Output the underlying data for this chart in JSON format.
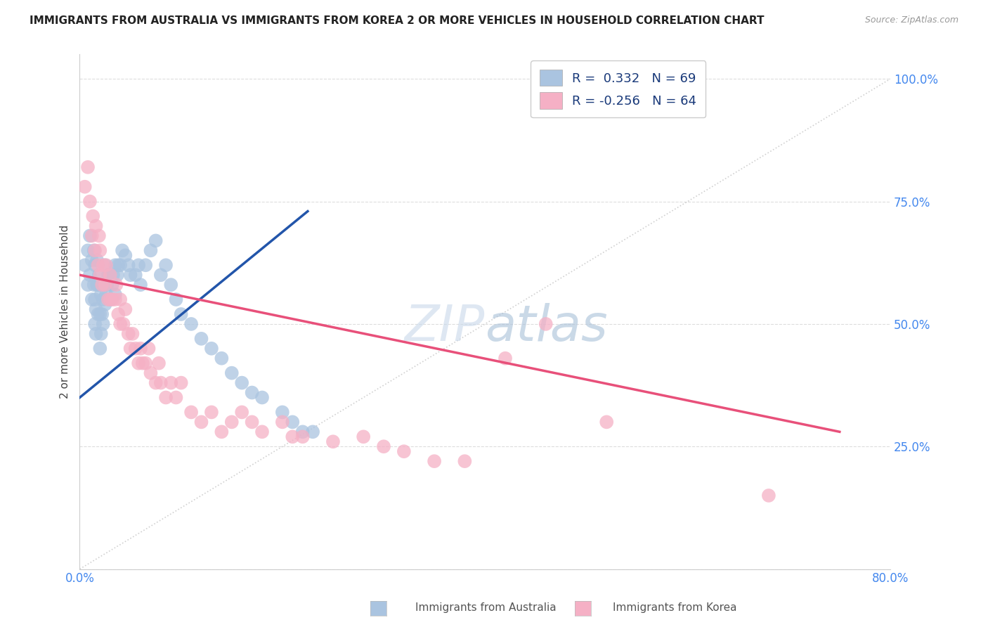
{
  "title": "IMMIGRANTS FROM AUSTRALIA VS IMMIGRANTS FROM KOREA 2 OR MORE VEHICLES IN HOUSEHOLD CORRELATION CHART",
  "source": "Source: ZipAtlas.com",
  "ylabel": "2 or more Vehicles in Household",
  "r_australia": 0.332,
  "n_australia": 69,
  "r_korea": -0.256,
  "n_korea": 64,
  "color_australia": "#aac4e0",
  "color_korea": "#f5b0c5",
  "line_color_australia": "#2255aa",
  "line_color_korea": "#e8507a",
  "diagonal_color": "#cccccc",
  "watermark_zip_color": "#c5d5e8",
  "watermark_atlas_color": "#aabdd8",
  "background_color": "#ffffff",
  "grid_color": "#dddddd",
  "title_color": "#222222",
  "axis_label_color": "#4488ee",
  "xlim": [
    0.0,
    0.8
  ],
  "ylim": [
    0.0,
    1.05
  ],
  "x_ticks": [
    0.0,
    0.1,
    0.2,
    0.3,
    0.4,
    0.5,
    0.6,
    0.7,
    0.8
  ],
  "y_ticks": [
    0.0,
    0.25,
    0.5,
    0.75,
    1.0
  ],
  "australia_line_x0": 0.0,
  "australia_line_y0": 0.35,
  "australia_line_x1": 0.225,
  "australia_line_y1": 0.73,
  "korea_line_x0": 0.0,
  "korea_line_y0": 0.6,
  "korea_line_x1": 0.75,
  "korea_line_y1": 0.28,
  "aus_scatter_x": [
    0.005,
    0.008,
    0.008,
    0.01,
    0.01,
    0.012,
    0.012,
    0.014,
    0.014,
    0.015,
    0.015,
    0.015,
    0.016,
    0.016,
    0.017,
    0.017,
    0.018,
    0.018,
    0.019,
    0.02,
    0.02,
    0.021,
    0.021,
    0.022,
    0.022,
    0.023,
    0.023,
    0.025,
    0.025,
    0.025,
    0.026,
    0.027,
    0.028,
    0.03,
    0.03,
    0.032,
    0.033,
    0.035,
    0.035,
    0.037,
    0.038,
    0.04,
    0.042,
    0.045,
    0.048,
    0.05,
    0.055,
    0.058,
    0.06,
    0.065,
    0.07,
    0.075,
    0.08,
    0.085,
    0.09,
    0.095,
    0.1,
    0.11,
    0.12,
    0.13,
    0.14,
    0.15,
    0.16,
    0.17,
    0.18,
    0.2,
    0.21,
    0.22,
    0.23
  ],
  "aus_scatter_y": [
    0.62,
    0.58,
    0.65,
    0.6,
    0.68,
    0.55,
    0.63,
    0.58,
    0.65,
    0.5,
    0.55,
    0.62,
    0.48,
    0.53,
    0.58,
    0.63,
    0.52,
    0.58,
    0.6,
    0.45,
    0.52,
    0.48,
    0.56,
    0.52,
    0.58,
    0.5,
    0.55,
    0.54,
    0.58,
    0.62,
    0.56,
    0.58,
    0.6,
    0.55,
    0.6,
    0.58,
    0.6,
    0.56,
    0.62,
    0.6,
    0.62,
    0.62,
    0.65,
    0.64,
    0.62,
    0.6,
    0.6,
    0.62,
    0.58,
    0.62,
    0.65,
    0.67,
    0.6,
    0.62,
    0.58,
    0.55,
    0.52,
    0.5,
    0.47,
    0.45,
    0.43,
    0.4,
    0.38,
    0.36,
    0.35,
    0.32,
    0.3,
    0.28,
    0.28
  ],
  "kor_scatter_x": [
    0.005,
    0.008,
    0.01,
    0.012,
    0.013,
    0.015,
    0.016,
    0.018,
    0.019,
    0.02,
    0.02,
    0.022,
    0.023,
    0.025,
    0.026,
    0.028,
    0.03,
    0.03,
    0.032,
    0.035,
    0.036,
    0.038,
    0.04,
    0.04,
    0.043,
    0.045,
    0.048,
    0.05,
    0.052,
    0.055,
    0.058,
    0.06,
    0.062,
    0.065,
    0.068,
    0.07,
    0.075,
    0.078,
    0.08,
    0.085,
    0.09,
    0.095,
    0.1,
    0.11,
    0.12,
    0.13,
    0.14,
    0.15,
    0.16,
    0.17,
    0.18,
    0.2,
    0.21,
    0.22,
    0.25,
    0.28,
    0.3,
    0.32,
    0.35,
    0.38,
    0.42,
    0.46,
    0.52,
    0.68
  ],
  "kor_scatter_y": [
    0.78,
    0.82,
    0.75,
    0.68,
    0.72,
    0.65,
    0.7,
    0.62,
    0.68,
    0.6,
    0.65,
    0.58,
    0.62,
    0.58,
    0.62,
    0.55,
    0.55,
    0.6,
    0.55,
    0.55,
    0.58,
    0.52,
    0.5,
    0.55,
    0.5,
    0.53,
    0.48,
    0.45,
    0.48,
    0.45,
    0.42,
    0.45,
    0.42,
    0.42,
    0.45,
    0.4,
    0.38,
    0.42,
    0.38,
    0.35,
    0.38,
    0.35,
    0.38,
    0.32,
    0.3,
    0.32,
    0.28,
    0.3,
    0.32,
    0.3,
    0.28,
    0.3,
    0.27,
    0.27,
    0.26,
    0.27,
    0.25,
    0.24,
    0.22,
    0.22,
    0.43,
    0.5,
    0.3,
    0.15
  ]
}
